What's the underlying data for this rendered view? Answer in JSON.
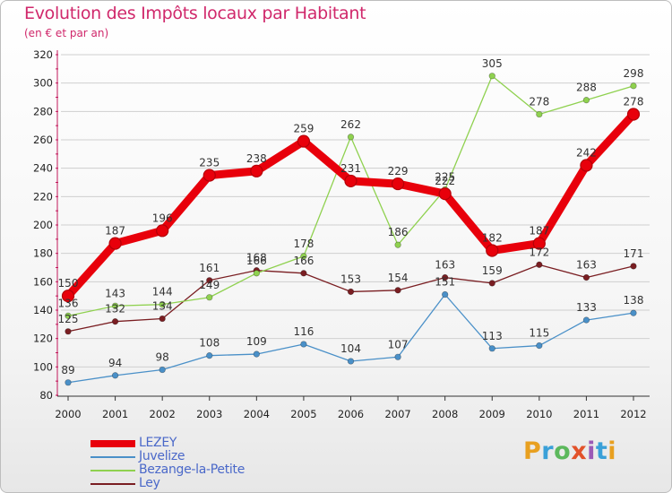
{
  "title": "Evolution des Impôts locaux par Habitant",
  "subtitle": "(en € et par an)",
  "brand": {
    "letters": [
      "P",
      "r",
      "o",
      "x",
      "i",
      "t",
      "i"
    ],
    "colors": [
      "#e8a020",
      "#3aa0d8",
      "#5cb85c",
      "#e2522a",
      "#9b59b6",
      "#3aa0d8",
      "#e8a020"
    ]
  },
  "colors": {
    "title": "#d0286b",
    "axis": "#c2185b",
    "grid": "#cfcfcf",
    "legend_text": "#4a68c9"
  },
  "chart_data": {
    "type": "line",
    "title": "Evolution des Impôts locaux par Habitant",
    "subtitle": "(en € et par an)",
    "x": [
      "2000",
      "2001",
      "2002",
      "2003",
      "2004",
      "2005",
      "2006",
      "2007",
      "2008",
      "2009",
      "2010",
      "2011",
      "2012"
    ],
    "ylim": [
      80,
      320
    ],
    "yticks": [
      80,
      100,
      120,
      140,
      160,
      180,
      200,
      220,
      240,
      260,
      280,
      300,
      320
    ],
    "grid": "horizontal",
    "legend": "bottom-left",
    "series": [
      {
        "name": "LEZEY",
        "color": "#e8000b",
        "values": [
          150,
          187,
          196,
          235,
          238,
          259,
          231,
          229,
          222,
          182,
          187,
          242,
          278
        ]
      },
      {
        "name": "Juvelize",
        "color": "#4a90c8",
        "values": [
          89,
          94,
          98,
          108,
          109,
          116,
          104,
          107,
          151,
          113,
          115,
          133,
          138
        ]
      },
      {
        "name": "Bezange-la-Petite",
        "color": "#8fd14f",
        "values": [
          136,
          143,
          144,
          149,
          166,
          178,
          262,
          186,
          225,
          305,
          278,
          288,
          298
        ]
      },
      {
        "name": "Ley",
        "color": "#7a1e22",
        "values": [
          125,
          132,
          134,
          161,
          168,
          166,
          153,
          154,
          163,
          159,
          172,
          163,
          171
        ]
      }
    ]
  }
}
